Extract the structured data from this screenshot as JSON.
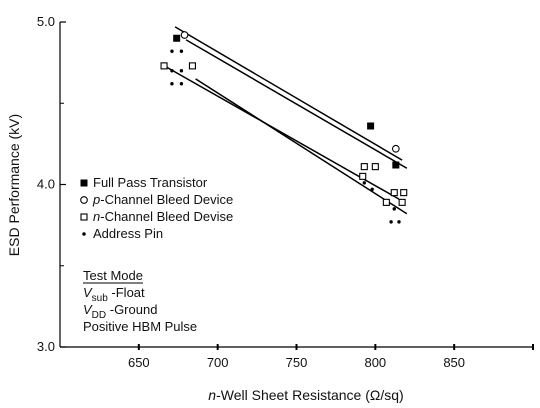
{
  "chart_data": {
    "type": "scatter",
    "xlabel_prefix": "n",
    "xlabel_rest": "-Well Sheet Resistance (Ω/sq)",
    "ylabel": "ESD Performance (kV)",
    "xlim": [
      600,
      900
    ],
    "ylim": [
      3.0,
      5.0
    ],
    "x_ticks": [
      650,
      700,
      750,
      800,
      850
    ],
    "y_ticks": [
      {
        "value": 3.0,
        "label": "3.0"
      },
      {
        "value": 4.0,
        "label": "4.0"
      },
      {
        "value": 5.0,
        "label": "5.0"
      }
    ],
    "series": [
      {
        "name": "Full Pass Transistor",
        "marker": "filled-square",
        "points": [
          [
            674,
            4.9
          ],
          [
            797,
            4.36
          ],
          [
            813,
            4.12
          ]
        ],
        "fit": [
          [
            673,
            4.97
          ],
          [
            817,
            4.15
          ]
        ]
      },
      {
        "name": "p-Channel Bleed Device",
        "marker": "open-circle",
        "points": [
          [
            679,
            4.92
          ],
          [
            813,
            4.22
          ]
        ],
        "fit": [
          [
            680,
            4.89
          ],
          [
            820,
            4.1
          ]
        ]
      },
      {
        "name": "n-Channel Bleed Devise",
        "marker": "open-square",
        "points": [
          [
            666,
            4.73
          ],
          [
            684,
            4.73
          ],
          [
            793,
            4.11
          ],
          [
            800,
            4.11
          ],
          [
            792,
            4.05
          ],
          [
            807,
            3.89
          ],
          [
            817,
            3.89
          ],
          [
            812,
            3.95
          ],
          [
            818,
            3.95
          ]
        ],
        "fit": [
          [
            668,
            4.72
          ],
          [
            815,
            3.91
          ]
        ]
      },
      {
        "name": "Address Pin",
        "marker": "dot",
        "points": [
          [
            671,
            4.62
          ],
          [
            677,
            4.62
          ],
          [
            671,
            4.82
          ],
          [
            677,
            4.82
          ],
          [
            671,
            4.7
          ],
          [
            677,
            4.7
          ],
          [
            793,
            4.01
          ],
          [
            798,
            3.97
          ],
          [
            810,
            3.77
          ],
          [
            815,
            3.77
          ],
          [
            812,
            3.85
          ]
        ],
        "fit": [
          [
            686,
            4.65
          ],
          [
            820,
            3.82
          ]
        ]
      }
    ],
    "legend": [
      {
        "prefix": "",
        "rest": "Full Pass Transistor",
        "marker": "filled-square"
      },
      {
        "prefix": "p",
        "rest": "-Channel Bleed Device",
        "marker": "open-circle"
      },
      {
        "prefix": "n",
        "rest": "-Channel Bleed Devise",
        "marker": "open-square"
      },
      {
        "prefix": "",
        "rest": "Address Pin",
        "marker": "dot"
      }
    ],
    "annotation": {
      "title": "Test Mode",
      "line1_var": "V",
      "line1_sub": "sub",
      "line1_rest": " -Float",
      "line2_var": "V",
      "line2_sub": "DD",
      "line2_rest": " -Ground",
      "line3": "Positive HBM Pulse"
    },
    "grid": false
  }
}
